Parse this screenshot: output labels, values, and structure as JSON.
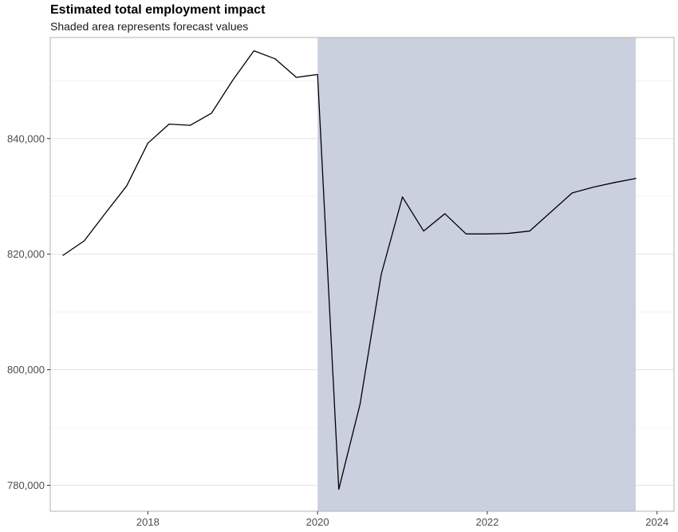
{
  "chart_data": {
    "type": "line",
    "title": "Estimated total employment impact",
    "subtitle": "Shaded area represents forecast values",
    "xlabel": "",
    "ylabel": "",
    "xlim": [
      2016.85,
      2024.2
    ],
    "ylim": [
      775500,
      857500
    ],
    "x_ticks": [
      2018,
      2020,
      2022,
      2024
    ],
    "x_tick_labels": [
      "2018",
      "2020",
      "2022",
      "2024"
    ],
    "y_ticks": [
      780000,
      800000,
      820000,
      840000
    ],
    "y_tick_labels": [
      "780,000",
      "800,000",
      "820,000",
      "840,000"
    ],
    "y_minor_gridlines": [
      790000,
      810000,
      830000,
      850000
    ],
    "grid": true,
    "forecast_region": {
      "x_start": 2020.0,
      "x_end": 2023.75,
      "color": "#cbd0de"
    },
    "series": [
      {
        "color": "#000000",
        "x": [
          2017.0,
          2017.25,
          2017.5,
          2017.75,
          2018.0,
          2018.25,
          2018.5,
          2018.75,
          2019.0,
          2019.25,
          2019.5,
          2019.75,
          2020.0,
          2020.25,
          2020.5,
          2020.75,
          2021.0,
          2021.25,
          2021.5,
          2021.75,
          2022.0,
          2022.25,
          2022.5,
          2022.75,
          2023.0,
          2023.25,
          2023.5,
          2023.75
        ],
        "y": [
          819800,
          822300,
          827100,
          831800,
          839200,
          842500,
          842300,
          844400,
          850100,
          855200,
          853800,
          850600,
          851100,
          779300,
          794000,
          816500,
          829900,
          824000,
          827000,
          823500,
          823500,
          823600,
          824000,
          827300,
          830600,
          831600,
          832400,
          833100
        ]
      }
    ]
  }
}
